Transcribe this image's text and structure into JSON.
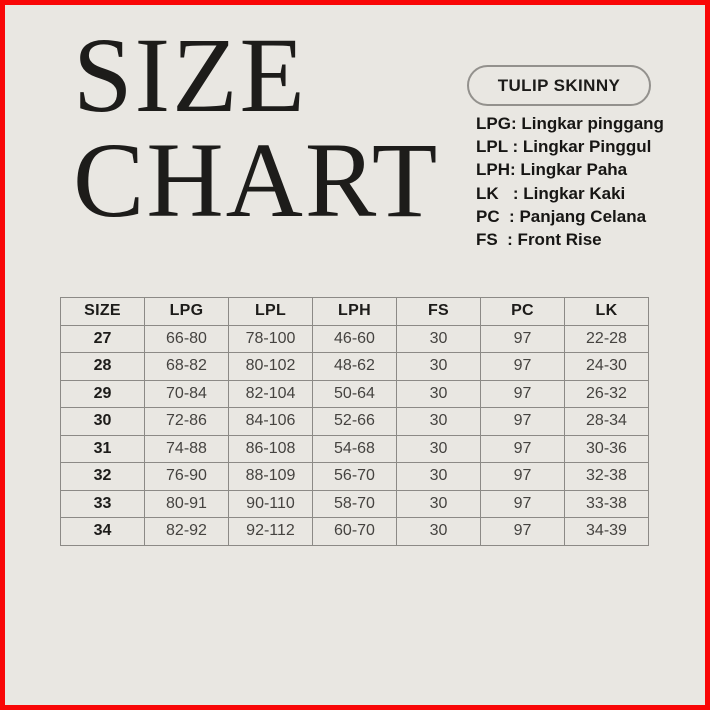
{
  "page": {
    "background_color": "#e9e7e2",
    "frame_border_color": "#f90707",
    "text_color": "#1d1c1a",
    "table_border_color": "#8c8a86"
  },
  "title": {
    "line1": "SIZE",
    "line2": "CHART"
  },
  "product_badge": "TULIP SKINNY",
  "legend": [
    "LPG: Lingkar pinggang",
    "LPL : Lingkar Pinggul",
    "LPH: Lingkar Paha",
    "LK   : Lingkar Kaki",
    "PC  : Panjang Celana",
    "FS  : Front Rise"
  ],
  "chart_data": {
    "type": "table",
    "title": "SIZE CHART",
    "subtitle": "TULIP SKINNY",
    "columns": [
      "SIZE",
      "LPG",
      "LPL",
      "LPH",
      "FS",
      "PC",
      "LK"
    ],
    "rows": [
      [
        "27",
        "66-80",
        "78-100",
        "46-60",
        "30",
        "97",
        "22-28"
      ],
      [
        "28",
        "68-82",
        "80-102",
        "48-62",
        "30",
        "97",
        "24-30"
      ],
      [
        "29",
        "70-84",
        "82-104",
        "50-64",
        "30",
        "97",
        "26-32"
      ],
      [
        "30",
        "72-86",
        "84-106",
        "52-66",
        "30",
        "97",
        "28-34"
      ],
      [
        "31",
        "74-88",
        "86-108",
        "54-68",
        "30",
        "97",
        "30-36"
      ],
      [
        "32",
        "76-90",
        "88-109",
        "56-70",
        "30",
        "97",
        "32-38"
      ],
      [
        "33",
        "80-91",
        "90-110",
        "58-70",
        "30",
        "97",
        "33-38"
      ],
      [
        "34",
        "82-92",
        "92-112",
        "60-70",
        "30",
        "97",
        "34-39"
      ]
    ]
  }
}
